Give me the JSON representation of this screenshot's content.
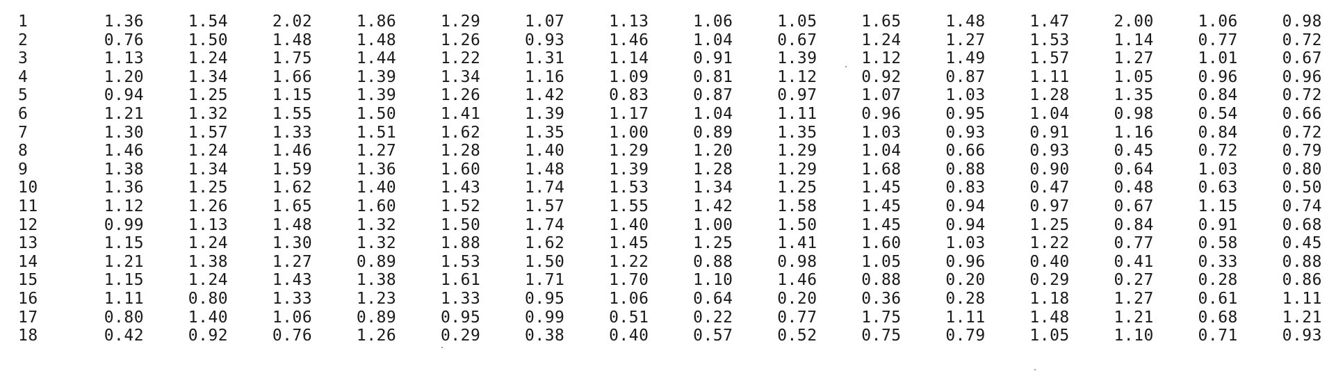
{
  "table": {
    "rows": [
      {
        "n": "1",
        "v": [
          "1.36",
          "1.54",
          "2.02",
          "1.86",
          "1.29",
          "1.07",
          "1.13",
          "1.06",
          "1.05",
          "1.65",
          "1.48",
          "1.47",
          "2.00",
          "1.06",
          "0.98"
        ]
      },
      {
        "n": "2",
        "v": [
          "0.76",
          "1.50",
          "1.48",
          "1.48",
          "1.26",
          "0.93",
          "1.46",
          "1.04",
          "0.67",
          "1.24",
          "1.27",
          "1.53",
          "1.14",
          "0.77",
          "0.72"
        ]
      },
      {
        "n": "3",
        "v": [
          "1.13",
          "1.24",
          "1.75",
          "1.44",
          "1.22",
          "1.31",
          "1.14",
          "0.91",
          "1.39",
          "1.12",
          "1.49",
          "1.57",
          "1.27",
          "1.01",
          "0.67"
        ]
      },
      {
        "n": "4",
        "v": [
          "1.20",
          "1.34",
          "1.66",
          "1.39",
          "1.34",
          "1.16",
          "1.09",
          "0.81",
          "1.12",
          "0.92",
          "0.87",
          "1.11",
          "1.05",
          "0.96",
          "0.96"
        ]
      },
      {
        "n": "5",
        "v": [
          "0.94",
          "1.25",
          "1.15",
          "1.39",
          "1.26",
          "1.42",
          "0.83",
          "0.87",
          "0.97",
          "1.07",
          "1.03",
          "1.28",
          "1.35",
          "0.84",
          "0.72"
        ]
      },
      {
        "n": "6",
        "v": [
          "1.21",
          "1.32",
          "1.55",
          "1.50",
          "1.41",
          "1.39",
          "1.17",
          "1.04",
          "1.11",
          "0.96",
          "0.95",
          "1.04",
          "0.98",
          "0.54",
          "0.66"
        ]
      },
      {
        "n": "7",
        "v": [
          "1.30",
          "1.57",
          "1.33",
          "1.51",
          "1.62",
          "1.35",
          "1.00",
          "0.89",
          "1.35",
          "1.03",
          "0.93",
          "0.91",
          "1.16",
          "0.84",
          "0.72"
        ]
      },
      {
        "n": "8",
        "v": [
          "1.46",
          "1.24",
          "1.46",
          "1.27",
          "1.28",
          "1.40",
          "1.29",
          "1.20",
          "1.29",
          "1.04",
          "0.66",
          "0.93",
          "0.45",
          "0.72",
          "0.79"
        ]
      },
      {
        "n": "9",
        "v": [
          "1.38",
          "1.34",
          "1.59",
          "1.36",
          "1.60",
          "1.48",
          "1.39",
          "1.28",
          "1.29",
          "1.68",
          "0.88",
          "0.90",
          "0.64",
          "1.03",
          "0.80"
        ]
      },
      {
        "n": "10",
        "v": [
          "1.36",
          "1.25",
          "1.62",
          "1.40",
          "1.43",
          "1.74",
          "1.53",
          "1.34",
          "1.25",
          "1.45",
          "0.83",
          "0.47",
          "0.48",
          "0.63",
          "0.50"
        ]
      },
      {
        "n": "11",
        "v": [
          "1.12",
          "1.26",
          "1.65",
          "1.60",
          "1.52",
          "1.57",
          "1.55",
          "1.42",
          "1.58",
          "1.45",
          "0.94",
          "0.97",
          "0.67",
          "1.15",
          "0.74"
        ]
      },
      {
        "n": "12",
        "v": [
          "0.99",
          "1.13",
          "1.48",
          "1.32",
          "1.50",
          "1.74",
          "1.40",
          "1.00",
          "1.50",
          "1.45",
          "0.94",
          "1.25",
          "0.84",
          "0.91",
          "0.68"
        ]
      },
      {
        "n": "13",
        "v": [
          "1.15",
          "1.24",
          "1.30",
          "1.32",
          "1.88",
          "1.62",
          "1.45",
          "1.25",
          "1.41",
          "1.60",
          "1.03",
          "1.22",
          "0.77",
          "0.58",
          "0.45"
        ]
      },
      {
        "n": "14",
        "v": [
          "1.21",
          "1.38",
          "1.27",
          "0.89",
          "1.53",
          "1.50",
          "1.22",
          "0.88",
          "0.98",
          "1.05",
          "0.96",
          "0.40",
          "0.41",
          "0.33",
          "0.88"
        ]
      },
      {
        "n": "15",
        "v": [
          "1.15",
          "1.24",
          "1.43",
          "1.38",
          "1.61",
          "1.71",
          "1.70",
          "1.10",
          "1.46",
          "0.88",
          "0.20",
          "0.29",
          "0.27",
          "0.28",
          "0.86"
        ]
      },
      {
        "n": "16",
        "v": [
          "1.11",
          "0.80",
          "1.33",
          "1.23",
          "1.33",
          "0.95",
          "1.06",
          "0.64",
          "0.20",
          "0.36",
          "0.28",
          "1.18",
          "1.27",
          "0.61",
          "1.11"
        ]
      },
      {
        "n": "17",
        "v": [
          "0.80",
          "1.40",
          "1.06",
          "0.89",
          "0.95",
          "0.99",
          "0.51",
          "0.22",
          "0.77",
          "1.75",
          "1.11",
          "1.48",
          "1.21",
          "0.68",
          "1.21"
        ]
      },
      {
        "n": "18",
        "v": [
          "0.42",
          "0.92",
          "0.76",
          "1.26",
          "0.29",
          "0.38",
          "0.40",
          "0.57",
          "0.52",
          "0.75",
          "0.79",
          "1.05",
          "1.10",
          "0.71",
          "0.93"
        ]
      }
    ]
  }
}
